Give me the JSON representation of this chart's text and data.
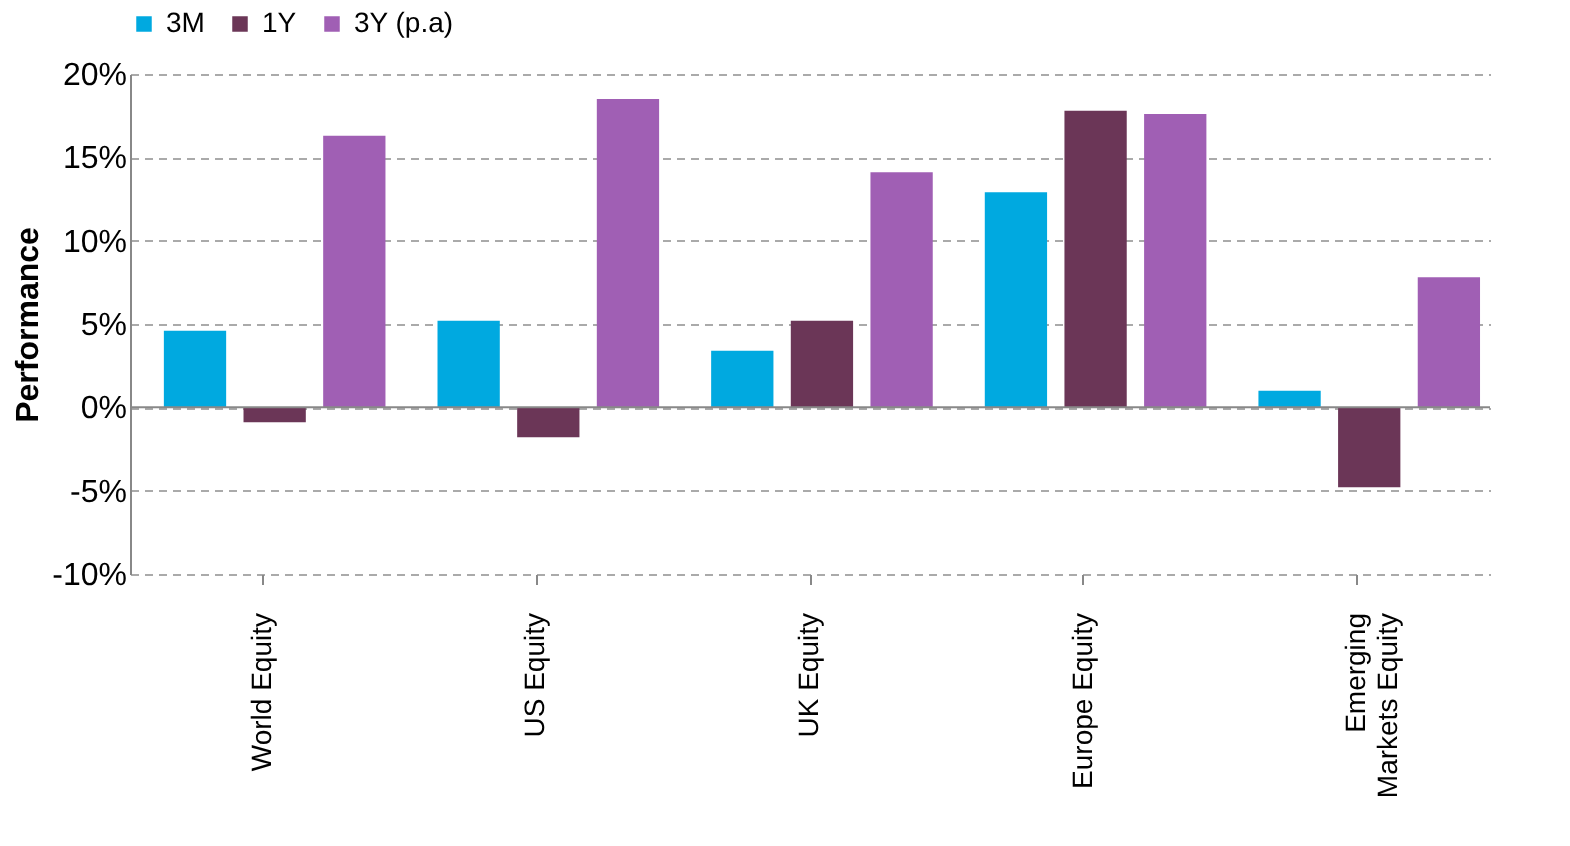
{
  "chart_data": {
    "type": "bar",
    "ylabel": "Performance",
    "categories": [
      "World Equity",
      "US Equity",
      "UK Equity",
      "Europe Equity",
      "Emerging Markets Equity"
    ],
    "series": [
      {
        "name": "3M",
        "color": "#00a9e0",
        "values": [
          4.6,
          5.2,
          3.4,
          12.9,
          1.0
        ]
      },
      {
        "name": "1Y",
        "color": "#6b3657",
        "values": [
          -0.9,
          -1.8,
          5.2,
          17.8,
          -4.8
        ]
      },
      {
        "name": "3Y (p.a)",
        "color": "#a05fb4",
        "values": [
          16.3,
          18.5,
          14.1,
          17.6,
          7.8
        ]
      }
    ],
    "ylim": [
      -10,
      20
    ],
    "yticks": [
      {
        "value": -10,
        "label": "-10%"
      },
      {
        "value": -5,
        "label": "-5%"
      },
      {
        "value": 0,
        "label": "0%"
      },
      {
        "value": 5,
        "label": "5%"
      },
      {
        "value": 10,
        "label": "10%"
      },
      {
        "value": 15,
        "label": "15%"
      },
      {
        "value": 20,
        "label": "20%"
      }
    ],
    "grid": "y",
    "legend": "top"
  }
}
